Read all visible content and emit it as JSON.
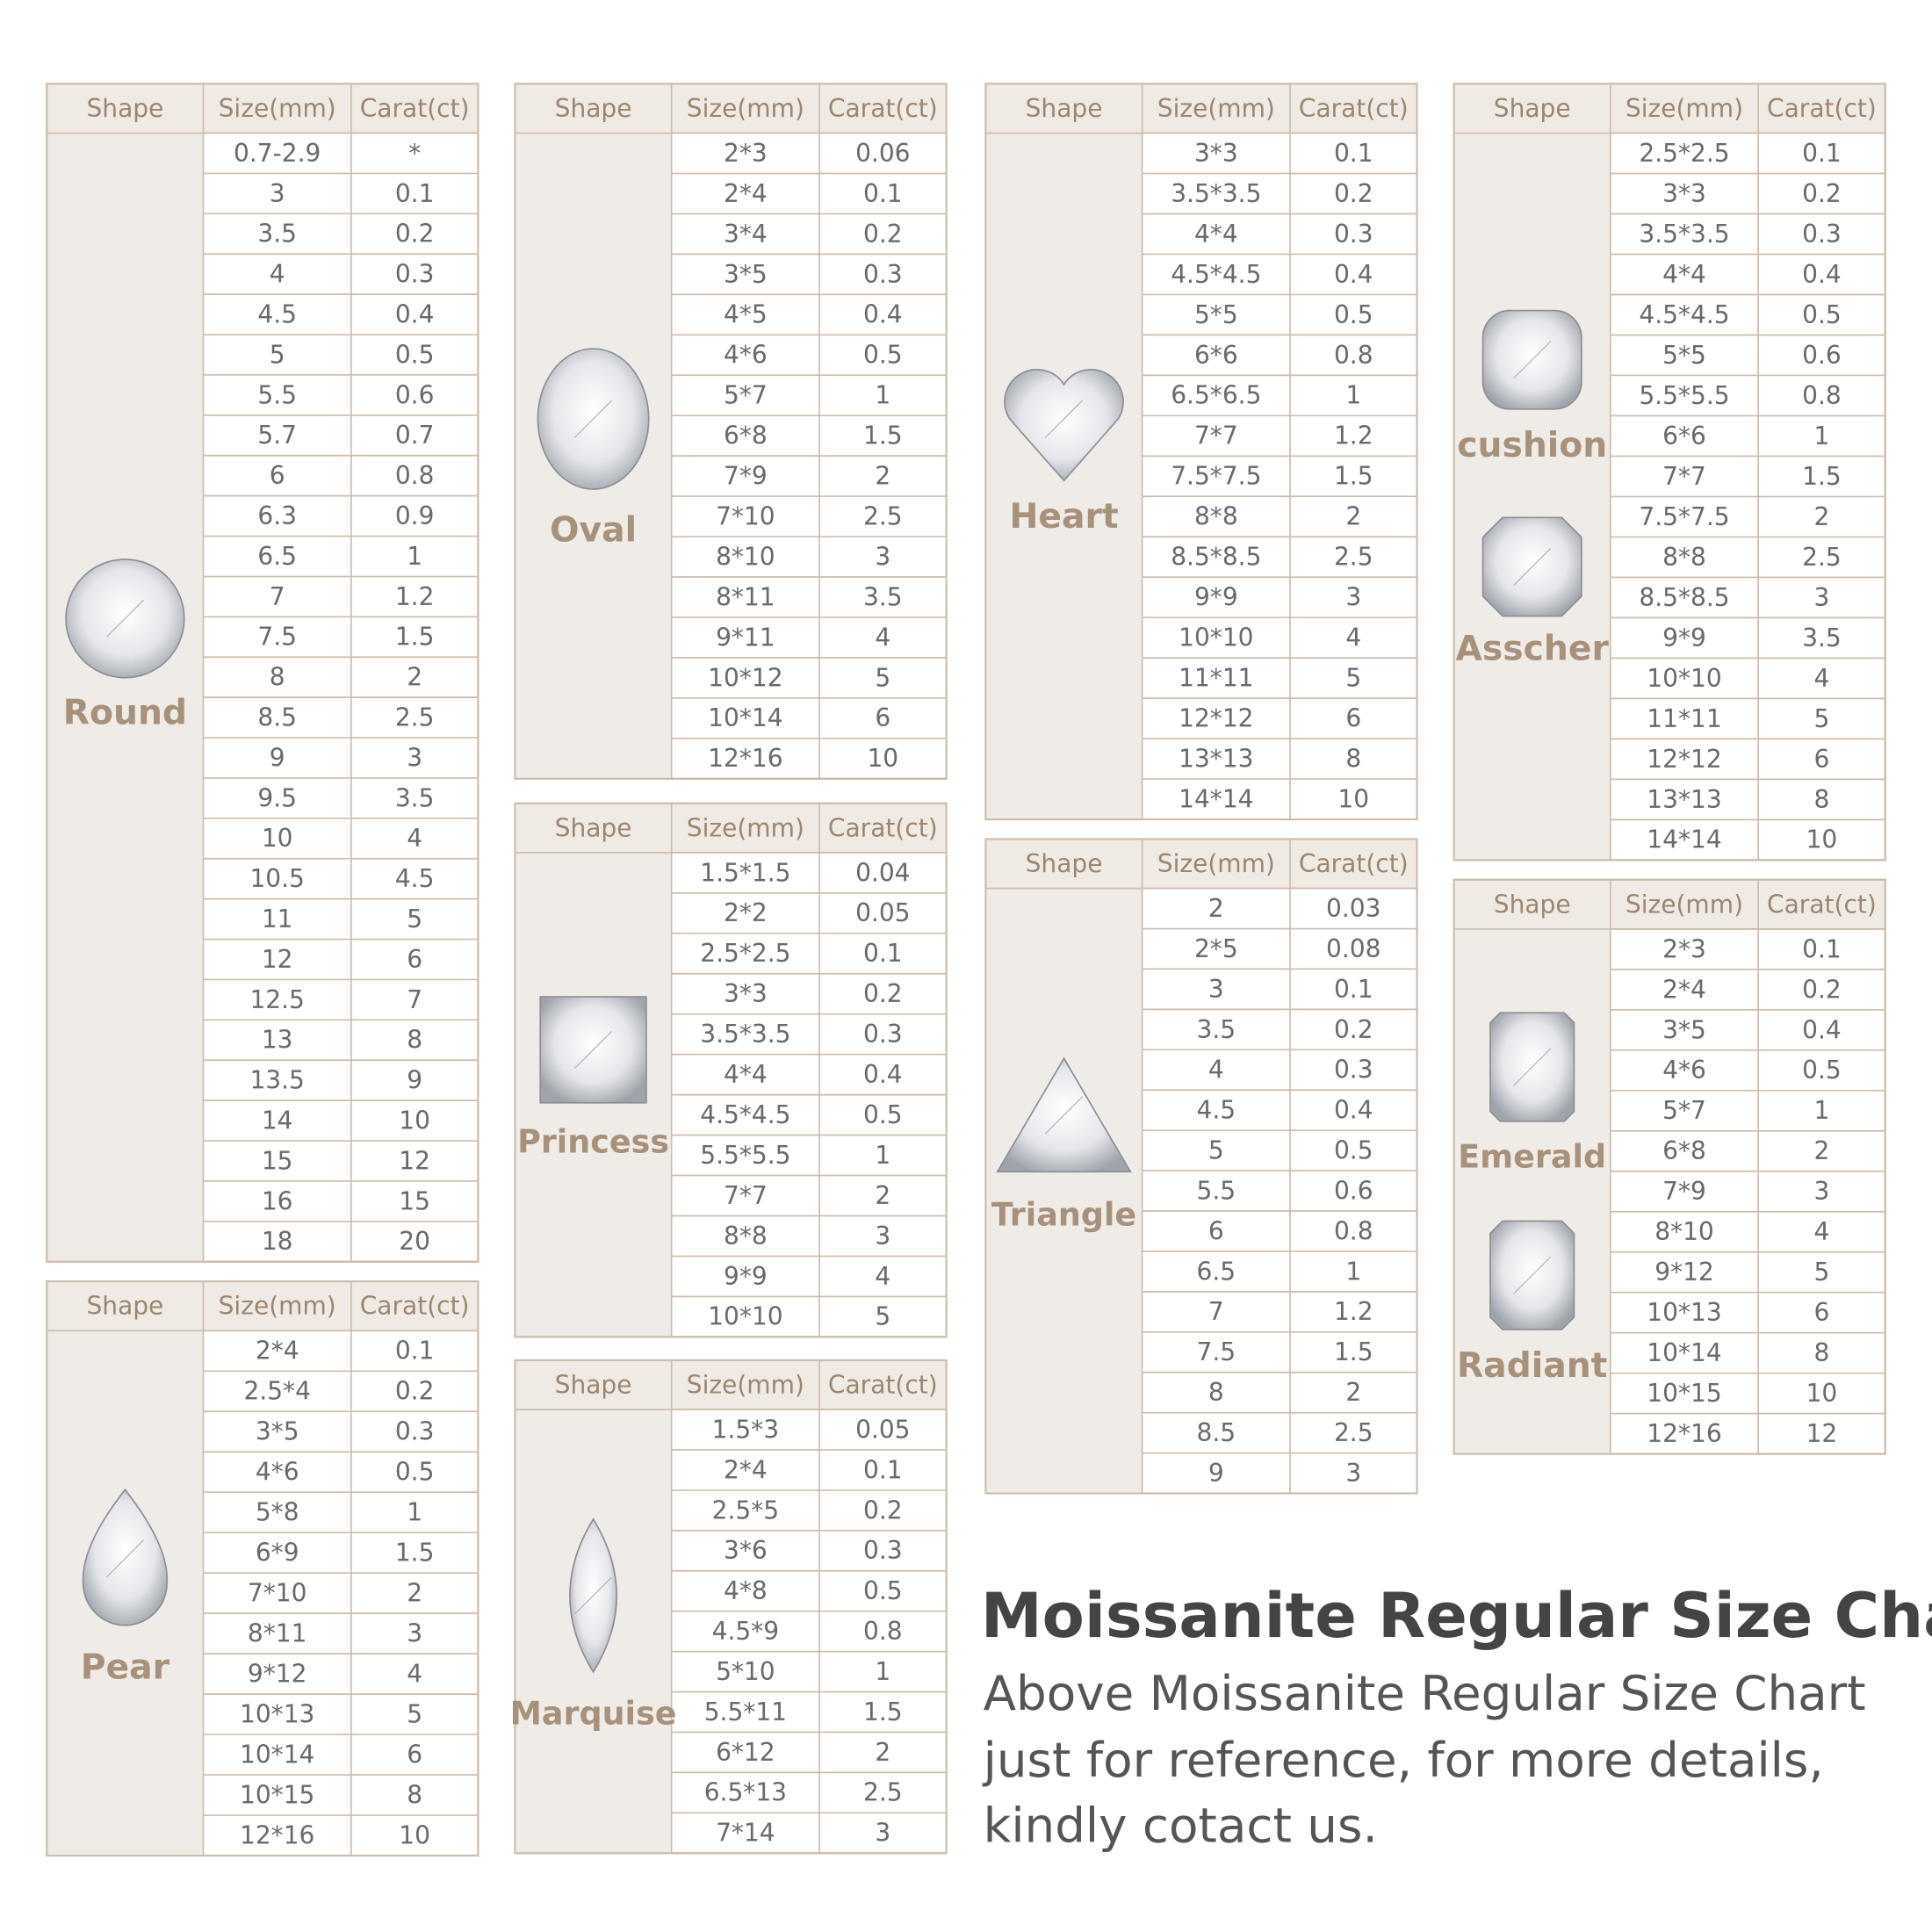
{
  "tables": [
    {
      "header": [
        "Shape",
        "Size(mm)",
        "Carat(ct)"
      ],
      "shapes": [
        "Round"
      ],
      "rows": [
        [
          "0.7-2.9",
          "*"
        ],
        [
          "3",
          "0.1"
        ],
        [
          "3.5",
          "0.2"
        ],
        [
          "4",
          "0.3"
        ],
        [
          "4.5",
          "0.4"
        ],
        [
          "5",
          "0.5"
        ],
        [
          "5.5",
          "0.6"
        ],
        [
          "5.7",
          "0.7"
        ],
        [
          "6",
          "0.8"
        ],
        [
          "6.3",
          "0.9"
        ],
        [
          "6.5",
          "1"
        ],
        [
          "7",
          "1.2"
        ],
        [
          "7.5",
          "1.5"
        ],
        [
          "8",
          "2"
        ],
        [
          "8.5",
          "2.5"
        ],
        [
          "9",
          "3"
        ],
        [
          "9.5",
          "3.5"
        ],
        [
          "10",
          "4"
        ],
        [
          "10.5",
          "4.5"
        ],
        [
          "11",
          "5"
        ],
        [
          "12",
          "6"
        ],
        [
          "12.5",
          "7"
        ],
        [
          "13",
          "8"
        ],
        [
          "13.5",
          "9"
        ],
        [
          "14",
          "10"
        ],
        [
          "15",
          "12"
        ],
        [
          "16",
          "15"
        ],
        [
          "18",
          "20"
        ]
      ]
    },
    {
      "header": [
        "Shape",
        "Size(mm)",
        "Carat(ct)"
      ],
      "shapes": [
        "Pear"
      ],
      "rows": [
        [
          "2*4",
          "0.1"
        ],
        [
          "2.5*4",
          "0.2"
        ],
        [
          "3*5",
          "0.3"
        ],
        [
          "4*6",
          "0.5"
        ],
        [
          "5*8",
          "1"
        ],
        [
          "6*9",
          "1.5"
        ],
        [
          "7*10",
          "2"
        ],
        [
          "8*11",
          "3"
        ],
        [
          "9*12",
          "4"
        ],
        [
          "10*13",
          "5"
        ],
        [
          "10*14",
          "6"
        ],
        [
          "10*15",
          "8"
        ],
        [
          "12*16",
          "10"
        ]
      ]
    },
    {
      "header": [
        "Shape",
        "Size(mm)",
        "Carat(ct)"
      ],
      "shapes": [
        "Oval"
      ],
      "rows": [
        [
          "2*3",
          "0.06"
        ],
        [
          "2*4",
          "0.1"
        ],
        [
          "3*4",
          "0.2"
        ],
        [
          "3*5",
          "0.3"
        ],
        [
          "4*5",
          "0.4"
        ],
        [
          "4*6",
          "0.5"
        ],
        [
          "5*7",
          "1"
        ],
        [
          "6*8",
          "1.5"
        ],
        [
          "7*9",
          "2"
        ],
        [
          "7*10",
          "2.5"
        ],
        [
          "8*10",
          "3"
        ],
        [
          "8*11",
          "3.5"
        ],
        [
          "9*11",
          "4"
        ],
        [
          "10*12",
          "5"
        ],
        [
          "10*14",
          "6"
        ],
        [
          "12*16",
          "10"
        ]
      ]
    },
    {
      "header": [
        "Shape",
        "Size(mm)",
        "Carat(ct)"
      ],
      "shapes": [
        "Princess"
      ],
      "rows": [
        [
          "1.5*1.5",
          "0.04"
        ],
        [
          "2*2",
          "0.05"
        ],
        [
          "2.5*2.5",
          "0.1"
        ],
        [
          "3*3",
          "0.2"
        ],
        [
          "3.5*3.5",
          "0.3"
        ],
        [
          "4*4",
          "0.4"
        ],
        [
          "4.5*4.5",
          "0.5"
        ],
        [
          "5.5*5.5",
          "1"
        ],
        [
          "7*7",
          "2"
        ],
        [
          "8*8",
          "3"
        ],
        [
          "9*9",
          "4"
        ],
        [
          "10*10",
          "5"
        ]
      ]
    },
    {
      "header": [
        "Shape",
        "Size(mm)",
        "Carat(ct)"
      ],
      "shapes": [
        "Marquise"
      ],
      "rows": [
        [
          "1.5*3",
          "0.05"
        ],
        [
          "2*4",
          "0.1"
        ],
        [
          "2.5*5",
          "0.2"
        ],
        [
          "3*6",
          "0.3"
        ],
        [
          "4*8",
          "0.5"
        ],
        [
          "4.5*9",
          "0.8"
        ],
        [
          "5*10",
          "1"
        ],
        [
          "5.5*11",
          "1.5"
        ],
        [
          "6*12",
          "2"
        ],
        [
          "6.5*13",
          "2.5"
        ],
        [
          "7*14",
          "3"
        ]
      ]
    },
    {
      "header": [
        "Shape",
        "Size(mm)",
        "Carat(ct)"
      ],
      "shapes": [
        "Heart"
      ],
      "rows": [
        [
          "3*3",
          "0.1"
        ],
        [
          "3.5*3.5",
          "0.2"
        ],
        [
          "4*4",
          "0.3"
        ],
        [
          "4.5*4.5",
          "0.4"
        ],
        [
          "5*5",
          "0.5"
        ],
        [
          "6*6",
          "0.8"
        ],
        [
          "6.5*6.5",
          "1"
        ],
        [
          "7*7",
          "1.2"
        ],
        [
          "7.5*7.5",
          "1.5"
        ],
        [
          "8*8",
          "2"
        ],
        [
          "8.5*8.5",
          "2.5"
        ],
        [
          "9*9",
          "3"
        ],
        [
          "10*10",
          "4"
        ],
        [
          "11*11",
          "5"
        ],
        [
          "12*12",
          "6"
        ],
        [
          "13*13",
          "8"
        ],
        [
          "14*14",
          "10"
        ]
      ]
    },
    {
      "header": [
        "Shape",
        "Size(mm)",
        "Carat(ct)"
      ],
      "shapes": [
        "Triangle"
      ],
      "rows": [
        [
          "2",
          "0.03"
        ],
        [
          "2*5",
          "0.08"
        ],
        [
          "3",
          "0.1"
        ],
        [
          "3.5",
          "0.2"
        ],
        [
          "4",
          "0.3"
        ],
        [
          "4.5",
          "0.4"
        ],
        [
          "5",
          "0.5"
        ],
        [
          "5.5",
          "0.6"
        ],
        [
          "6",
          "0.8"
        ],
        [
          "6.5",
          "1"
        ],
        [
          "7",
          "1.2"
        ],
        [
          "7.5",
          "1.5"
        ],
        [
          "8",
          "2"
        ],
        [
          "8.5",
          "2.5"
        ],
        [
          "9",
          "3"
        ]
      ]
    },
    {
      "header": [
        "Shape",
        "Size(mm)",
        "Carat(ct)"
      ],
      "shapes": [
        "cushion",
        "Asscher"
      ],
      "rows": [
        [
          "2.5*2.5",
          "0.1"
        ],
        [
          "3*3",
          "0.2"
        ],
        [
          "3.5*3.5",
          "0.3"
        ],
        [
          "4*4",
          "0.4"
        ],
        [
          "4.5*4.5",
          "0.5"
        ],
        [
          "5*5",
          "0.6"
        ],
        [
          "5.5*5.5",
          "0.8"
        ],
        [
          "6*6",
          "1"
        ],
        [
          "7*7",
          "1.5"
        ],
        [
          "7.5*7.5",
          "2"
        ],
        [
          "8*8",
          "2.5"
        ],
        [
          "8.5*8.5",
          "3"
        ],
        [
          "9*9",
          "3.5"
        ],
        [
          "10*10",
          "4"
        ],
        [
          "11*11",
          "5"
        ],
        [
          "12*12",
          "6"
        ],
        [
          "13*13",
          "8"
        ],
        [
          "14*14",
          "10"
        ]
      ]
    },
    {
      "header": [
        "Shape",
        "Size(mm)",
        "Carat(ct)"
      ],
      "shapes": [
        "Emerald",
        "Radiant"
      ],
      "rows": [
        [
          "2*3",
          "0.1"
        ],
        [
          "2*4",
          "0.2"
        ],
        [
          "3*5",
          "0.4"
        ],
        [
          "4*6",
          "0.5"
        ],
        [
          "5*7",
          "1"
        ],
        [
          "6*8",
          "2"
        ],
        [
          "7*9",
          "3"
        ],
        [
          "8*10",
          "4"
        ],
        [
          "9*12",
          "5"
        ],
        [
          "10*13",
          "6"
        ],
        [
          "10*14",
          "8"
        ],
        [
          "10*15",
          "10"
        ],
        [
          "12*16",
          "12"
        ]
      ]
    }
  ],
  "title": "Moissanite Regular Size Chart",
  "subtitle": {
    "lines": [
      "Above Moissanite Regular Size Chart",
      "just for reference, for more details,",
      "kindly cotact us."
    ]
  }
}
